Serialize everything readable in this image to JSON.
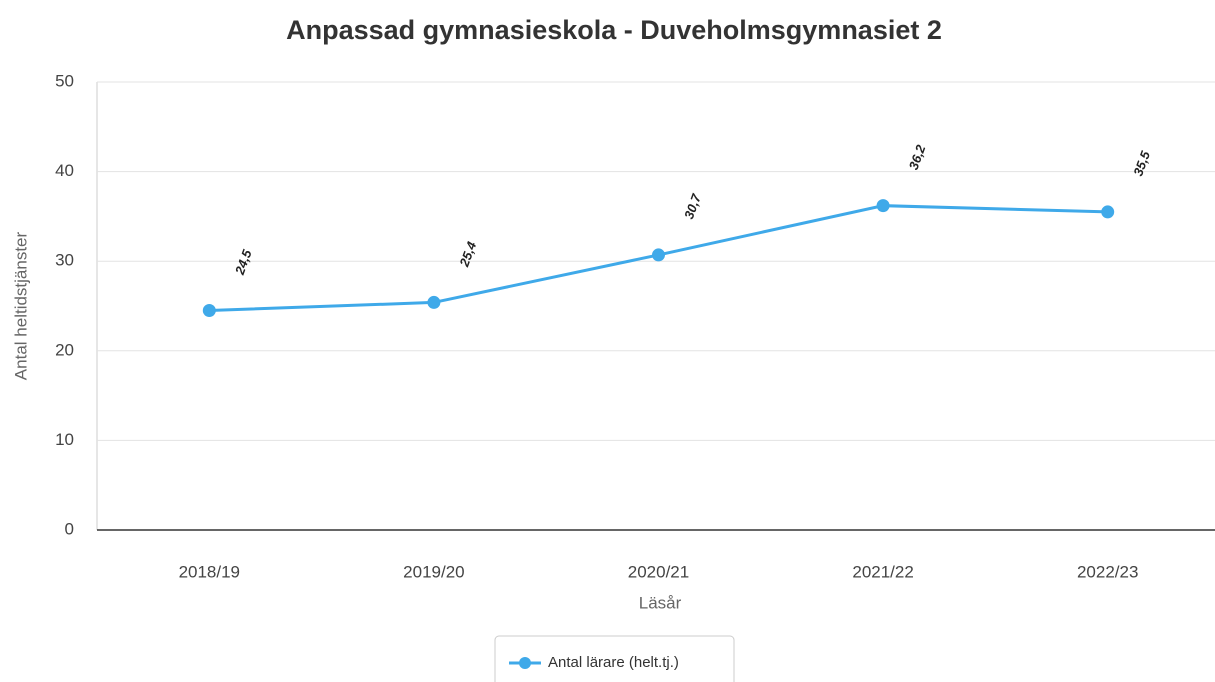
{
  "chart_data": {
    "type": "line",
    "title": "Anpassad gymnasieskola - Duveholmsgymnasiet 2",
    "xlabel": "Läsår",
    "ylabel": "Antal heltidstjänster",
    "categories": [
      "2018/19",
      "2019/20",
      "2020/21",
      "2021/22",
      "2022/23"
    ],
    "series": [
      {
        "name": "Antal lärare (helt.tj.)",
        "color": "#3fa9e9",
        "values": [
          24.5,
          25.4,
          30.7,
          36.2,
          35.5
        ],
        "value_labels": [
          "24,5",
          "25,4",
          "30,7",
          "36,2",
          "35,5"
        ]
      }
    ],
    "ylim": [
      0,
      50
    ],
    "yticks": [
      0,
      10,
      20,
      30,
      40,
      50
    ],
    "grid": true
  }
}
